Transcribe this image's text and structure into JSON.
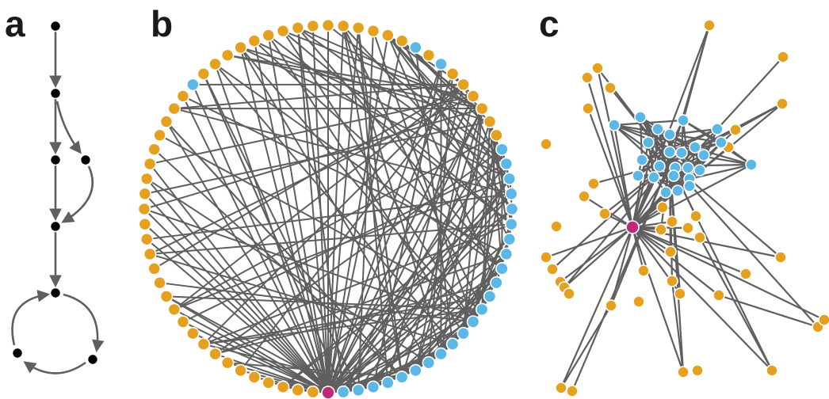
{
  "panels": {
    "a": {
      "label": "a"
    },
    "b": {
      "label": "b"
    },
    "c": {
      "label": "c"
    }
  },
  "colors": {
    "edge": "#5f5f5f",
    "dag_node": "#000000",
    "orange_node": "#e6a020",
    "blue_node": "#5bb8e6",
    "focus_node": "#c0297a",
    "node_outline": "#ffffff"
  },
  "diagram_a": {
    "description_type": "directed graph",
    "node_count": 8
  },
  "diagram_b": {
    "description_type": "circular network layout",
    "node_count": 76,
    "focus_node_color": "magenta"
  },
  "diagram_c": {
    "description_type": "force-directed network layout",
    "focus_node_color": "magenta"
  }
}
